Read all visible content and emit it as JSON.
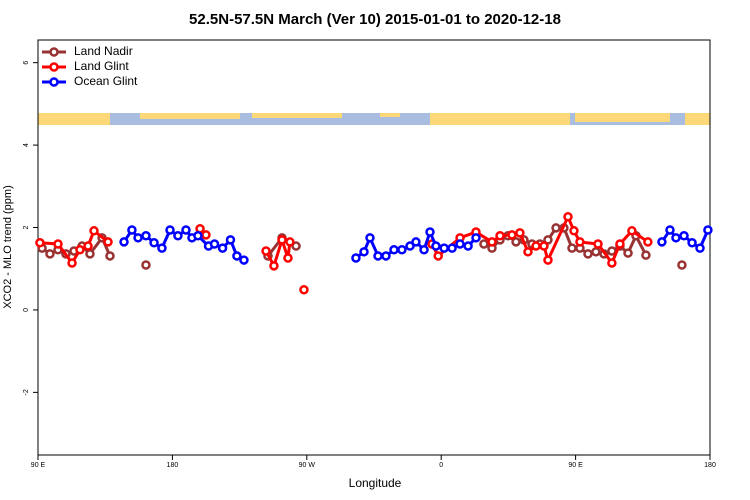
{
  "chart_data": {
    "type": "line",
    "title": "52.5N-57.5N March (Ver 10)   2015-01-01 to 2020-12-18",
    "x_label": "Longitude",
    "y_label": "XCO2 - MLO trend (ppm)",
    "xlim": [
      90,
      540
    ],
    "xticks": [
      {
        "value": 90,
        "label": "90 E"
      },
      180,
      {
        "value": 270,
        "label": "90 W"
      },
      {
        "value": 360,
        "label": "0"
      },
      {
        "value": 450,
        "label": "90 E"
      },
      {
        "value": 540,
        "label": "180"
      }
    ],
    "ylim": [
      -3.52,
      6.55
    ],
    "yticks": [
      -2,
      0,
      2,
      4,
      6
    ],
    "legend": "top-left",
    "series": [
      {
        "name": "Land Nadir",
        "color": "#993333",
        "x": [
          92.7,
          98.0,
          103.4,
          108.7,
          114.1,
          119.5,
          124.8,
          132.9,
          138.2,
          null,
          162.3,
          null,
          244.0,
          253.4,
          262.8,
          null,
          388.6,
          394.0,
          399.4,
          404.7,
          410.1,
          415.4,
          420.8,
          426.1,
          431.5,
          436.9,
          442.2,
          447.6,
          452.9,
          458.3,
          463.6,
          469.0,
          474.3,
          479.7,
          485.1,
          490.4,
          497.1,
          null,
          521.2
        ],
        "values": [
          1.5,
          1.36,
          1.46,
          1.36,
          1.43,
          1.55,
          1.36,
          1.75,
          1.31,
          null,
          1.09,
          null,
          1.31,
          1.75,
          1.55,
          null,
          1.6,
          1.5,
          1.7,
          1.8,
          1.65,
          1.7,
          1.6,
          1.6,
          1.7,
          1.99,
          1.99,
          1.5,
          1.5,
          1.36,
          1.41,
          1.36,
          1.43,
          1.55,
          1.38,
          1.8,
          1.33,
          null,
          1.09
        ]
      },
      {
        "name": "Land Glint",
        "color": "#ff0000",
        "x": [
          91.3,
          103.4,
          112.8,
          118.1,
          123.5,
          127.5,
          136.9,
          null,
          198.5,
          202.5,
          null,
          242.7,
          248.0,
          253.4,
          257.4,
          258.7,
          null,
          268.1,
          null,
          353.8,
          358.0,
          372.6,
          383.3,
          394.0,
          399.4,
          407.4,
          412.7,
          418.1,
          423.5,
          428.8,
          431.5,
          444.9,
          448.9,
          452.9,
          465.0,
          474.3,
          479.7,
          487.7,
          498.4
        ],
        "values": [
          1.63,
          1.6,
          1.14,
          1.46,
          1.55,
          1.92,
          1.65,
          null,
          1.97,
          1.82,
          null,
          1.43,
          1.07,
          1.7,
          1.26,
          1.65,
          null,
          0.49,
          null,
          1.6,
          1.31,
          1.75,
          1.89,
          1.65,
          1.8,
          1.82,
          1.87,
          1.41,
          1.55,
          1.55,
          1.21,
          2.26,
          1.92,
          1.65,
          1.6,
          1.14,
          1.6,
          1.92,
          1.65
        ]
      },
      {
        "name": "Ocean Glint",
        "color": "#0000ff",
        "x": [
          147.6,
          152.9,
          157.0,
          162.3,
          167.7,
          173.0,
          178.4,
          183.7,
          189.1,
          193.1,
          197.1,
          204.2,
          208.2,
          213.6,
          218.9,
          223.2,
          227.9,
          null,
          302.9,
          308.3,
          312.3,
          317.7,
          323.0,
          328.4,
          333.7,
          339.1,
          343.1,
          348.5,
          352.5,
          356.5,
          362.0,
          367.3,
          372.6,
          378.0,
          383.3,
          null,
          507.8,
          513.2,
          517.2,
          522.6,
          528.0,
          533.3,
          538.6
        ],
        "values": [
          1.65,
          1.94,
          1.75,
          1.8,
          1.63,
          1.5,
          1.94,
          1.8,
          1.94,
          1.75,
          1.8,
          1.55,
          1.6,
          1.5,
          1.7,
          1.31,
          1.21,
          null,
          1.26,
          1.41,
          1.75,
          1.31,
          1.31,
          1.46,
          1.46,
          1.55,
          1.65,
          1.46,
          1.89,
          1.55,
          1.5,
          1.5,
          1.6,
          1.55,
          1.75,
          null,
          1.65,
          1.94,
          1.75,
          1.8,
          1.63,
          1.5,
          1.94
        ]
      }
    ]
  }
}
